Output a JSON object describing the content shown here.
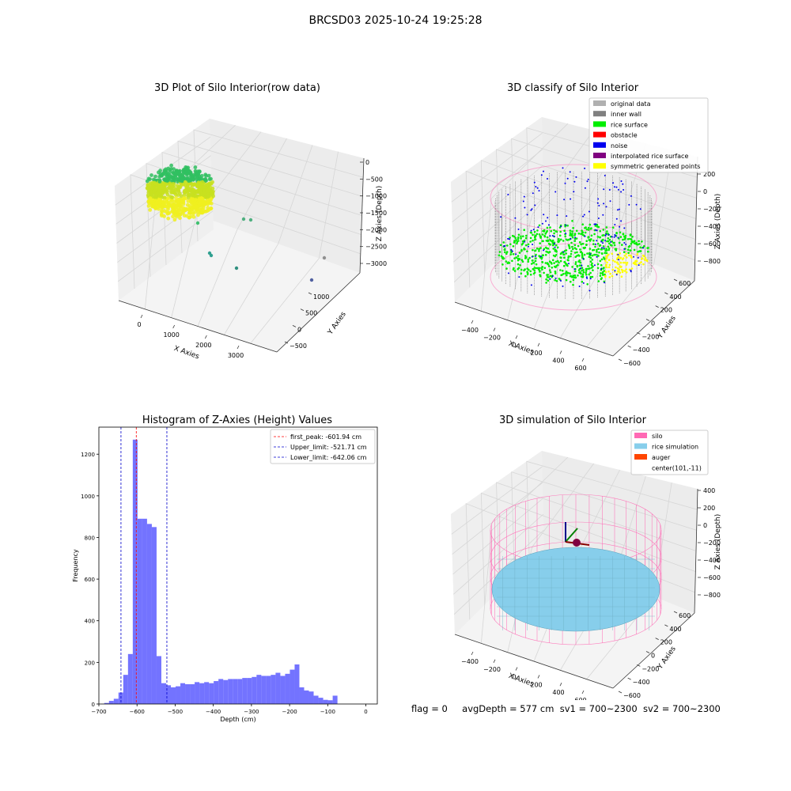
{
  "figure": {
    "suptitle": "BRCSD03 2025-10-24 19:25:28",
    "status": {
      "flag": "flag = 0",
      "avg_depth": "avgDepth = 577 cm",
      "sv1": "sv1 = 700~2300",
      "sv2": "sv2 = 700~2300"
    }
  },
  "colors": {
    "rice_gradient": [
      "#30c060",
      "#c8e020",
      "#f0f020"
    ],
    "original": "#b0b0b0",
    "inner_wall": "#808080",
    "rice_surface": "#00ee00",
    "obstacle": "#ff0000",
    "noise": "#0000ee",
    "interpolated": "#800080",
    "symmetric": "#ffff00",
    "silo": "#ff69b4",
    "rice_sim": "#87ceeb",
    "auger": "#ff4500",
    "hist_bar": "#5050ff"
  },
  "panels": {
    "raw": {
      "title": "3D Plot of Silo Interior(row data)",
      "x_label": "X Axies",
      "y_label": "Y Axies",
      "z_label": "Z Axies (Depth)",
      "x_ticks": [
        "0",
        "1000",
        "2000",
        "3000"
      ],
      "y_ticks": [
        "1000",
        "500",
        "0",
        "−500"
      ],
      "z_ticks": [
        "0",
        "−500",
        "−1000",
        "−1500",
        "−2000",
        "−2500",
        "−3000"
      ]
    },
    "classify": {
      "title": "3D classify of Silo Interior",
      "x_label": "X Axies",
      "y_label": "Y Axies",
      "z_label": "Z Axies (Depth)",
      "x_ticks": [
        "−400",
        "−200",
        "0",
        "200",
        "400",
        "600"
      ],
      "y_ticks": [
        "600",
        "400",
        "200",
        "0",
        "−200",
        "−400",
        "−600"
      ],
      "z_ticks": [
        "200",
        "0",
        "−200",
        "−400",
        "−600",
        "−800"
      ],
      "legend": [
        {
          "label": "original data",
          "color": "#b0b0b0"
        },
        {
          "label": "inner wall",
          "color": "#808080"
        },
        {
          "label": "rice surface",
          "color": "#00ee00"
        },
        {
          "label": "obstacle",
          "color": "#ff0000"
        },
        {
          "label": "noise",
          "color": "#0000ee"
        },
        {
          "label": "interpolated rice surface",
          "color": "#800080"
        },
        {
          "label": "symmetric generated points",
          "color": "#ffff00"
        }
      ]
    },
    "simulation": {
      "title": "3D simulation of Silo Interior",
      "x_label": "X Axies",
      "y_label": "Y Axies",
      "z_label": "Z Axies (Depth)",
      "x_ticks": [
        "−400",
        "−200",
        "0",
        "200",
        "400",
        "600"
      ],
      "y_ticks": [
        "600",
        "400",
        "200",
        "0",
        "−200",
        "−400",
        "−600"
      ],
      "z_ticks": [
        "400",
        "200",
        "0",
        "−200",
        "−400",
        "−600",
        "−800"
      ],
      "legend": [
        {
          "label": "silo",
          "color": "#ff69b4"
        },
        {
          "label": "rice simulation",
          "color": "#87ceeb"
        },
        {
          "label": "auger",
          "color": "#ff4500"
        },
        {
          "label": "center(101,-11)",
          "color": ""
        }
      ]
    }
  },
  "chart_data": {
    "type": "bar",
    "title": "Histogram of Z-Axies (Height) Values",
    "xlabel": "Depth (cm)",
    "ylabel": "Frequency",
    "xlim": [
      -700,
      30
    ],
    "ylim": [
      0,
      1330
    ],
    "x_ticks": [
      -700,
      -600,
      -500,
      -400,
      -300,
      -200,
      -100,
      0
    ],
    "y_ticks": [
      0,
      200,
      400,
      600,
      800,
      1000,
      1200
    ],
    "x_tick_labels": [
      "−700",
      "−600",
      "−500",
      "−400",
      "−300",
      "−200",
      "−100",
      "0"
    ],
    "y_tick_labels": [
      "0",
      "200",
      "400",
      "600",
      "800",
      "1000",
      "1200"
    ],
    "bin_start": -686,
    "bin_width": 12.48,
    "values": [
      5,
      15,
      25,
      55,
      140,
      240,
      1270,
      890,
      890,
      865,
      850,
      230,
      100,
      90,
      80,
      85,
      100,
      95,
      95,
      105,
      100,
      105,
      100,
      110,
      120,
      115,
      120,
      120,
      120,
      125,
      125,
      130,
      140,
      135,
      135,
      140,
      150,
      135,
      145,
      165,
      190,
      80,
      65,
      60,
      40,
      30,
      20,
      18,
      40
    ],
    "reference_lines": [
      {
        "label": "first_peak: -601.94 cm",
        "x": -601.94,
        "color": "#ff0000"
      },
      {
        "label": "Upper_limit: -521.71 cm",
        "x": -521.71,
        "color": "#0000cc"
      },
      {
        "label": "Lower_limit: -642.06 cm",
        "x": -642.06,
        "color": "#0000cc"
      }
    ],
    "legend_position": "upper right"
  }
}
